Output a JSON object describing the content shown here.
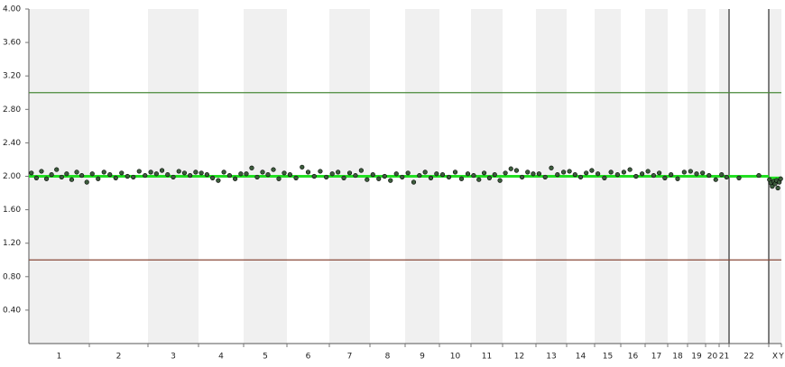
{
  "chart_data": {
    "type": "scatter",
    "categories": [
      "1",
      "2",
      "3",
      "4",
      "5",
      "6",
      "7",
      "8",
      "9",
      "10",
      "11",
      "12",
      "13",
      "14",
      "15",
      "16",
      "17",
      "18",
      "19",
      "20",
      "21",
      "22",
      "X",
      "Y"
    ],
    "ylim": [
      0,
      4
    ],
    "yticks": [
      {
        "value": 0.4,
        "label": "0.40"
      },
      {
        "value": 0.8,
        "label": "0.80"
      },
      {
        "value": 1.2,
        "label": "1.20"
      },
      {
        "value": 1.6,
        "label": "1.60"
      },
      {
        "value": 2.0,
        "label": "2.00"
      },
      {
        "value": 2.4,
        "label": "2.40"
      },
      {
        "value": 2.8,
        "label": "2.80"
      },
      {
        "value": 3.2,
        "label": "3.20"
      },
      {
        "value": 3.6,
        "label": "3.60"
      },
      {
        "value": 4.0,
        "label": "4.00"
      }
    ],
    "reference_lines": [
      {
        "value": 3,
        "color": "#4a8a3a"
      },
      {
        "value": 1,
        "color": "#8a4a3a"
      }
    ],
    "point_color": "#3c5c3c",
    "segment_color": "#22e022",
    "points": [
      [
        2.04,
        1.98,
        2.06,
        1.97,
        2.02,
        2.08,
        1.99,
        2.03,
        1.96,
        2.05,
        2.01,
        1.93
      ],
      [
        2.03,
        1.97,
        2.05,
        2.02,
        1.98,
        2.04,
        2.0,
        1.99,
        2.06,
        2.01
      ],
      [
        2.05,
        2.03,
        2.07,
        2.02,
        1.99,
        2.06,
        2.04,
        2.01,
        2.05
      ],
      [
        2.04,
        2.02,
        1.98,
        1.95,
        2.05,
        2.01,
        1.97,
        2.03
      ],
      [
        2.03,
        2.1,
        1.99,
        2.05,
        2.02,
        2.08,
        1.97,
        2.04
      ],
      [
        2.02,
        1.98,
        2.11,
        2.05,
        2.0,
        2.06,
        1.99
      ],
      [
        2.03,
        2.05,
        1.98,
        2.04,
        2.01,
        2.07,
        1.96
      ],
      [
        2.02,
        1.97,
        2.0,
        1.95,
        2.03,
        1.99
      ],
      [
        2.04,
        1.93,
        2.01,
        2.05,
        1.98,
        2.03
      ],
      [
        2.02,
        1.99,
        2.05,
        1.97,
        2.03
      ],
      [
        2.01,
        1.96,
        2.04,
        1.98,
        2.02,
        1.95
      ],
      [
        2.04,
        2.09,
        2.07,
        1.99,
        2.05,
        2.03
      ],
      [
        2.03,
        1.99,
        2.1,
        2.02,
        2.05
      ],
      [
        2.06,
        2.02,
        1.99,
        2.04,
        2.07
      ],
      [
        2.03,
        1.98,
        2.05,
        2.02
      ],
      [
        2.05,
        2.08,
        2.0,
        2.03
      ],
      [
        2.06,
        2.01,
        2.04,
        1.98
      ],
      [
        2.02,
        1.97,
        2.05
      ],
      [
        2.06,
        2.03,
        2.04
      ],
      [
        2.01,
        1.96
      ],
      [
        2.02,
        1.99
      ],
      [
        1.98,
        2.01
      ],
      [
        1.96,
        1.92,
        1.88,
        1.94,
        1.91,
        1.95,
        1.86,
        1.93,
        1.97
      ],
      []
    ],
    "segments": [
      2.0,
      2.0,
      2.0,
      2.0,
      2.0,
      2.0,
      2.0,
      2.0,
      2.0,
      2.0,
      2.0,
      2.0,
      2.0,
      2.0,
      2.0,
      2.0,
      2.0,
      2.0,
      2.0,
      2.0,
      2.0,
      2.0,
      1.98,
      0.0
    ]
  }
}
